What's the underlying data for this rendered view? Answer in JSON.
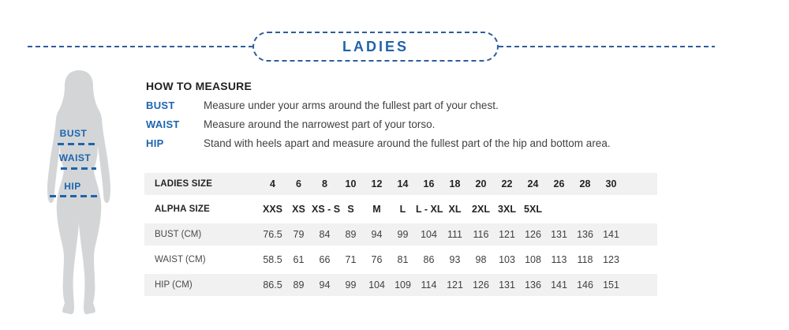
{
  "header": {
    "title": "LADIES"
  },
  "figure": {
    "bust_label": "BUST",
    "waist_label": "WAIST",
    "hip_label": "HIP"
  },
  "how_to_measure": {
    "title": "HOW TO MEASURE",
    "items": [
      {
        "label": "BUST",
        "text": "Measure under your arms around the fullest part of your chest."
      },
      {
        "label": "WAIST",
        "text": "Measure around the narrowest part of your torso."
      },
      {
        "label": "HIP",
        "text": "Stand with heels apart and measure around the fullest part of the hip and bottom area."
      }
    ]
  },
  "size_table": {
    "rows": [
      {
        "label": "LADIES SIZE",
        "header": true,
        "values": [
          "4",
          "6",
          "8",
          "10",
          "12",
          "14",
          "16",
          "18",
          "20",
          "22",
          "24",
          "26",
          "28",
          "30"
        ]
      },
      {
        "label": "ALPHA SIZE",
        "header": true,
        "values": [
          "XXS",
          "XS",
          "XS - S",
          "S",
          "M",
          "L",
          "L - XL",
          "XL",
          "2XL",
          "3XL",
          "5XL",
          "",
          "",
          ""
        ]
      },
      {
        "label": "BUST (CM)",
        "header": false,
        "values": [
          "76.5",
          "79",
          "84",
          "89",
          "94",
          "99",
          "104",
          "111",
          "116",
          "121",
          "126",
          "131",
          "136",
          "141"
        ]
      },
      {
        "label": "WAIST (CM)",
        "header": false,
        "values": [
          "58.5",
          "61",
          "66",
          "71",
          "76",
          "81",
          "86",
          "93",
          "98",
          "103",
          "108",
          "113",
          "118",
          "123"
        ]
      },
      {
        "label": "HIP (CM)",
        "header": false,
        "values": [
          "86.5",
          "89",
          "94",
          "99",
          "104",
          "109",
          "114",
          "121",
          "126",
          "131",
          "136",
          "141",
          "146",
          "151"
        ]
      }
    ]
  },
  "colors": {
    "accent_blue": "#1b65ae",
    "dash_blue": "#2e5c9c",
    "row_gray": "#f1f1f2",
    "silhouette_gray": "#d3d5d7"
  }
}
